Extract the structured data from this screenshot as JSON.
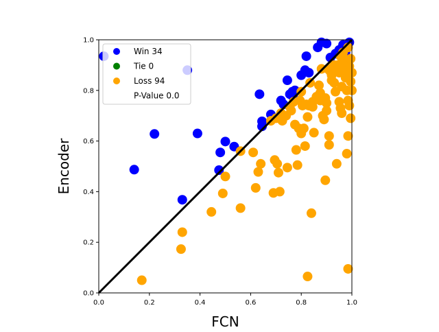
{
  "chart_data": {
    "type": "scatter",
    "xlabel": "FCN",
    "ylabel": "Encoder",
    "xlim": [
      0.0,
      1.0
    ],
    "ylim": [
      0.0,
      1.0
    ],
    "xticks": [
      "0.0",
      "0.2",
      "0.4",
      "0.6",
      "0.8",
      "1.0"
    ],
    "yticks": [
      "0.0",
      "0.2",
      "0.4",
      "0.6",
      "0.8",
      "1.0"
    ],
    "grid": false,
    "legend_position": "top-left",
    "diagonal": {
      "from": [
        0.0,
        0.0
      ],
      "to": [
        1.0,
        1.0
      ],
      "color": "#000000"
    },
    "legend": [
      {
        "label": "Win 34",
        "color": "#0000ff"
      },
      {
        "label": "Tie 0",
        "color": "#008000"
      },
      {
        "label": "Loss 94",
        "color": "#ffa500"
      },
      {
        "label": "P-Value 0.0",
        "color": null
      }
    ],
    "series": [
      {
        "name": "Win 34",
        "color": "#0000ff",
        "points": [
          [
            0.02,
            0.935
          ],
          [
            0.35,
            0.88
          ],
          [
            0.14,
            0.487
          ],
          [
            0.22,
            0.628
          ],
          [
            0.33,
            0.368
          ],
          [
            0.39,
            0.63
          ],
          [
            0.475,
            0.485
          ],
          [
            0.48,
            0.555
          ],
          [
            0.5,
            0.598
          ],
          [
            0.535,
            0.578
          ],
          [
            0.635,
            0.785
          ],
          [
            0.645,
            0.658
          ],
          [
            0.645,
            0.678
          ],
          [
            0.68,
            0.705
          ],
          [
            0.72,
            0.76
          ],
          [
            0.73,
            0.745
          ],
          [
            0.745,
            0.84
          ],
          [
            0.755,
            0.785
          ],
          [
            0.765,
            0.795
          ],
          [
            0.775,
            0.8
          ],
          [
            0.77,
            0.77
          ],
          [
            0.8,
            0.86
          ],
          [
            0.815,
            0.88
          ],
          [
            0.82,
            0.935
          ],
          [
            0.83,
            0.87
          ],
          [
            0.865,
            0.97
          ],
          [
            0.88,
            0.99
          ],
          [
            0.9,
            0.985
          ],
          [
            0.915,
            0.93
          ],
          [
            0.935,
            0.945
          ],
          [
            0.95,
            0.96
          ],
          [
            0.965,
            0.98
          ],
          [
            0.975,
            0.95
          ],
          [
            0.99,
            0.99
          ]
        ]
      },
      {
        "name": "Tie 0",
        "color": "#008000",
        "points": []
      },
      {
        "name": "Loss 94",
        "color": "#ffa500",
        "points": [
          [
            0.17,
            0.05
          ],
          [
            0.325,
            0.173
          ],
          [
            0.33,
            0.24
          ],
          [
            0.445,
            0.32
          ],
          [
            0.49,
            0.393
          ],
          [
            0.5,
            0.46
          ],
          [
            0.56,
            0.335
          ],
          [
            0.56,
            0.56
          ],
          [
            0.61,
            0.555
          ],
          [
            0.62,
            0.415
          ],
          [
            0.63,
            0.478
          ],
          [
            0.64,
            0.51
          ],
          [
            0.69,
            0.395
          ],
          [
            0.695,
            0.525
          ],
          [
            0.705,
            0.51
          ],
          [
            0.71,
            0.475
          ],
          [
            0.715,
            0.4
          ],
          [
            0.725,
            0.68
          ],
          [
            0.745,
            0.495
          ],
          [
            0.68,
            0.68
          ],
          [
            0.7,
            0.69
          ],
          [
            0.74,
            0.7
          ],
          [
            0.76,
            0.72
          ],
          [
            0.775,
            0.665
          ],
          [
            0.78,
            0.565
          ],
          [
            0.785,
            0.505
          ],
          [
            0.79,
            0.65
          ],
          [
            0.795,
            0.76
          ],
          [
            0.8,
            0.63
          ],
          [
            0.81,
            0.65
          ],
          [
            0.815,
            0.58
          ],
          [
            0.82,
            0.745
          ],
          [
            0.825,
            0.695
          ],
          [
            0.83,
            0.74
          ],
          [
            0.835,
            0.83
          ],
          [
            0.84,
            0.315
          ],
          [
            0.845,
            0.755
          ],
          [
            0.85,
            0.633
          ],
          [
            0.825,
            0.065
          ],
          [
            0.87,
            0.82
          ],
          [
            0.875,
            0.76
          ],
          [
            0.88,
            0.885
          ],
          [
            0.885,
            0.7
          ],
          [
            0.89,
            0.685
          ],
          [
            0.895,
            0.445
          ],
          [
            0.9,
            0.72
          ],
          [
            0.9,
            0.75
          ],
          [
            0.91,
            0.62
          ],
          [
            0.91,
            0.585
          ],
          [
            0.915,
            0.875
          ],
          [
            0.92,
            0.84
          ],
          [
            0.93,
            0.83
          ],
          [
            0.935,
            0.795
          ],
          [
            0.94,
            0.51
          ],
          [
            0.945,
            0.9
          ],
          [
            0.95,
            0.755
          ],
          [
            0.955,
            0.73
          ],
          [
            0.96,
            0.71
          ],
          [
            0.96,
            0.815
          ],
          [
            0.965,
            0.875
          ],
          [
            0.97,
            0.925
          ],
          [
            0.975,
            0.85
          ],
          [
            0.98,
            0.55
          ],
          [
            0.98,
            0.8
          ],
          [
            0.985,
            0.095
          ],
          [
            0.985,
            0.76
          ],
          [
            0.99,
            0.895
          ],
          [
            0.99,
            0.74
          ],
          [
            0.995,
            0.69
          ],
          [
            0.995,
            0.835
          ],
          [
            1.0,
            0.8
          ],
          [
            1.0,
            0.87
          ],
          [
            0.905,
            0.885
          ],
          [
            0.92,
            0.86
          ],
          [
            0.955,
            0.935
          ],
          [
            0.975,
            0.905
          ],
          [
            0.985,
            0.97
          ],
          [
            0.995,
            0.925
          ],
          [
            0.86,
            0.775
          ],
          [
            0.8,
            0.795
          ],
          [
            0.805,
            0.74
          ],
          [
            0.77,
            0.755
          ],
          [
            0.755,
            0.735
          ],
          [
            0.73,
            0.695
          ],
          [
            0.72,
            0.71
          ],
          [
            0.965,
            0.95
          ],
          [
            0.985,
            0.62
          ],
          [
            0.875,
            0.79
          ],
          [
            0.895,
            0.77
          ],
          [
            0.845,
            0.735
          ],
          [
            0.93,
            0.9
          ],
          [
            0.94,
            0.88
          ],
          [
            0.95,
            0.87
          ],
          [
            0.97,
            0.895
          ]
        ]
      }
    ]
  }
}
